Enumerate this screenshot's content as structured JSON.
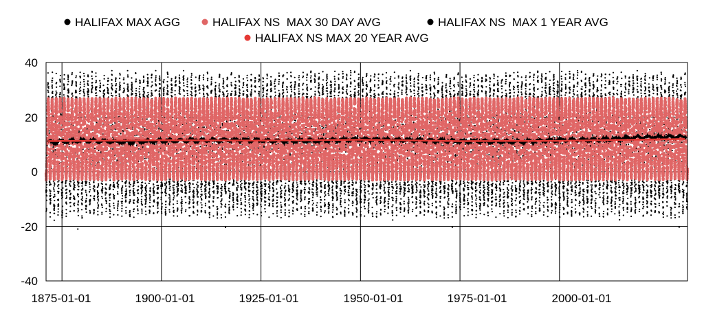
{
  "chart_data": {
    "type": "scatter",
    "title": "",
    "xlabel": "",
    "ylabel": "",
    "x_range": [
      "1871-01-01",
      "2032-03-01"
    ],
    "ylim": [
      -40,
      40
    ],
    "y_ticks": [
      "40",
      "20",
      "0",
      "-20",
      "-40"
    ],
    "x_ticks": [
      "1875-01-01",
      "1900-01-01",
      "1925-01-01",
      "1950-01-01",
      "1975-01-01",
      "2000-01-01"
    ],
    "grid": true,
    "legend_position": "top",
    "series": [
      {
        "name": "HALIFAX MAX AGG",
        "color": "#000000",
        "kind": "daily points",
        "annual_range": [
          -10,
          30
        ],
        "extremes": [
          -21,
          37
        ]
      },
      {
        "name": "HALIFAX NS  MAX 30 DAY AVG",
        "color": "#e06666",
        "kind": "seasonal points",
        "annual_range": [
          -2,
          26
        ]
      },
      {
        "name": "HALIFAX NS  MAX 1 YEAR AVG",
        "color": "#000000",
        "kind": "line",
        "x": [
          "1871-01-01",
          "1880-01-01",
          "1890-01-01",
          "1900-01-01",
          "1910-01-01",
          "1920-01-01",
          "1930-01-01",
          "1940-01-01",
          "1950-01-01",
          "1960-01-01",
          "1970-01-01",
          "1980-01-01",
          "1990-01-01",
          "2000-01-01",
          "2010-01-01",
          "2020-01-01",
          "2032-03-01"
        ],
        "values": [
          10.8,
          11.4,
          10.9,
          11.3,
          11.5,
          11.6,
          11.2,
          11.4,
          11.9,
          11.7,
          11.3,
          11.1,
          11.0,
          11.6,
          11.7,
          12.6,
          12.8
        ]
      },
      {
        "name": "HALIFAX NS MAX 20 YEAR AVG",
        "color": "#e53935",
        "kind": "line",
        "x": [
          "1871-01-01",
          "1900-01-01",
          "1925-01-01",
          "1950-01-01",
          "1975-01-01",
          "2000-01-01",
          "2032-03-01"
        ],
        "values": [
          11.2,
          11.5,
          11.4,
          11.7,
          11.2,
          11.3,
          12.0
        ]
      }
    ]
  }
}
